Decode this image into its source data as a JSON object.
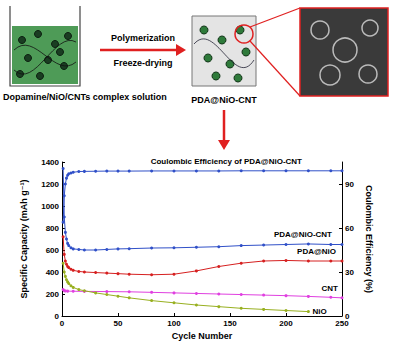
{
  "schematic": {
    "start_label": "Dopamine/NiO/CNTs complex solution",
    "step_labels": [
      "Polymerization",
      "Freeze-drying"
    ],
    "product_label": "PDA@NiO-CNT"
  },
  "chart_data": {
    "type": "line",
    "x_label": "Cycle Number",
    "y_label": "Specific Capacity (mAh g⁻¹)",
    "y2_label": "Coulombic Efficiency (%)",
    "xlim": [
      0,
      250
    ],
    "xticks": [
      0,
      50,
      100,
      150,
      200,
      250
    ],
    "ylim": [
      0,
      1400
    ],
    "yticks": [
      0,
      200,
      400,
      600,
      800,
      1000,
      1200,
      1400
    ],
    "y2lim": [
      0,
      105
    ],
    "y2ticks": [
      0,
      30,
      60,
      90
    ],
    "grid": false,
    "series": [
      {
        "name": "Coulombic Efficiency of PDA@NiO-CNT",
        "color": "#3050c8",
        "axis": "y2",
        "marker": "circle",
        "x": [
          1,
          2,
          3,
          4,
          5,
          6,
          8,
          10,
          15,
          20,
          30,
          40,
          50,
          60,
          80,
          100,
          120,
          140,
          160,
          180,
          200,
          220,
          240,
          250
        ],
        "values": [
          64,
          82,
          90,
          94,
          96,
          97,
          97.5,
          98,
          98.5,
          98.6,
          98.7,
          98.8,
          98.8,
          98.8,
          98.9,
          98.9,
          98.9,
          98.9,
          99,
          99,
          99,
          99,
          99,
          99
        ]
      },
      {
        "name": "PDA@NiO-CNT",
        "color": "#3050c8",
        "marker": "circle",
        "x": [
          1,
          2,
          3,
          4,
          5,
          6,
          8,
          10,
          15,
          20,
          30,
          40,
          50,
          60,
          80,
          100,
          120,
          140,
          160,
          180,
          200,
          220,
          240,
          250
        ],
        "values": [
          1340,
          900,
          760,
          700,
          660,
          640,
          620,
          610,
          605,
          600,
          600,
          605,
          610,
          612,
          618,
          620,
          625,
          630,
          640,
          645,
          650,
          655,
          650,
          650
        ]
      },
      {
        "name": "PDA@NiO",
        "color": "#d62020",
        "marker": "circle",
        "x": [
          1,
          2,
          3,
          4,
          5,
          6,
          8,
          10,
          15,
          20,
          30,
          40,
          50,
          60,
          80,
          100,
          120,
          140,
          160,
          180,
          200,
          220,
          240,
          250
        ],
        "values": [
          720,
          560,
          500,
          470,
          450,
          440,
          425,
          415,
          405,
          400,
          395,
          390,
          385,
          380,
          375,
          380,
          410,
          450,
          480,
          500,
          505,
          500,
          500,
          500
        ]
      },
      {
        "name": "CNT",
        "color": "#e040e0",
        "marker": "circle",
        "x": [
          1,
          2,
          3,
          5,
          10,
          20,
          40,
          60,
          80,
          100,
          120,
          140,
          160,
          180,
          200,
          220,
          240,
          250
        ],
        "values": [
          240,
          230,
          228,
          226,
          225,
          224,
          222,
          220,
          215,
          210,
          205,
          200,
          195,
          190,
          185,
          178,
          170,
          165
        ]
      },
      {
        "name": "NiO",
        "color": "#98b020",
        "marker": "circle",
        "x": [
          1,
          2,
          3,
          4,
          5,
          6,
          8,
          10,
          15,
          20,
          30,
          40,
          50,
          60,
          80,
          100,
          120,
          140,
          160,
          180,
          200,
          220
        ],
        "values": [
          480,
          400,
          360,
          330,
          310,
          295,
          275,
          260,
          240,
          230,
          210,
          195,
          180,
          165,
          140,
          120,
          100,
          85,
          70,
          60,
          50,
          40
        ]
      }
    ]
  }
}
